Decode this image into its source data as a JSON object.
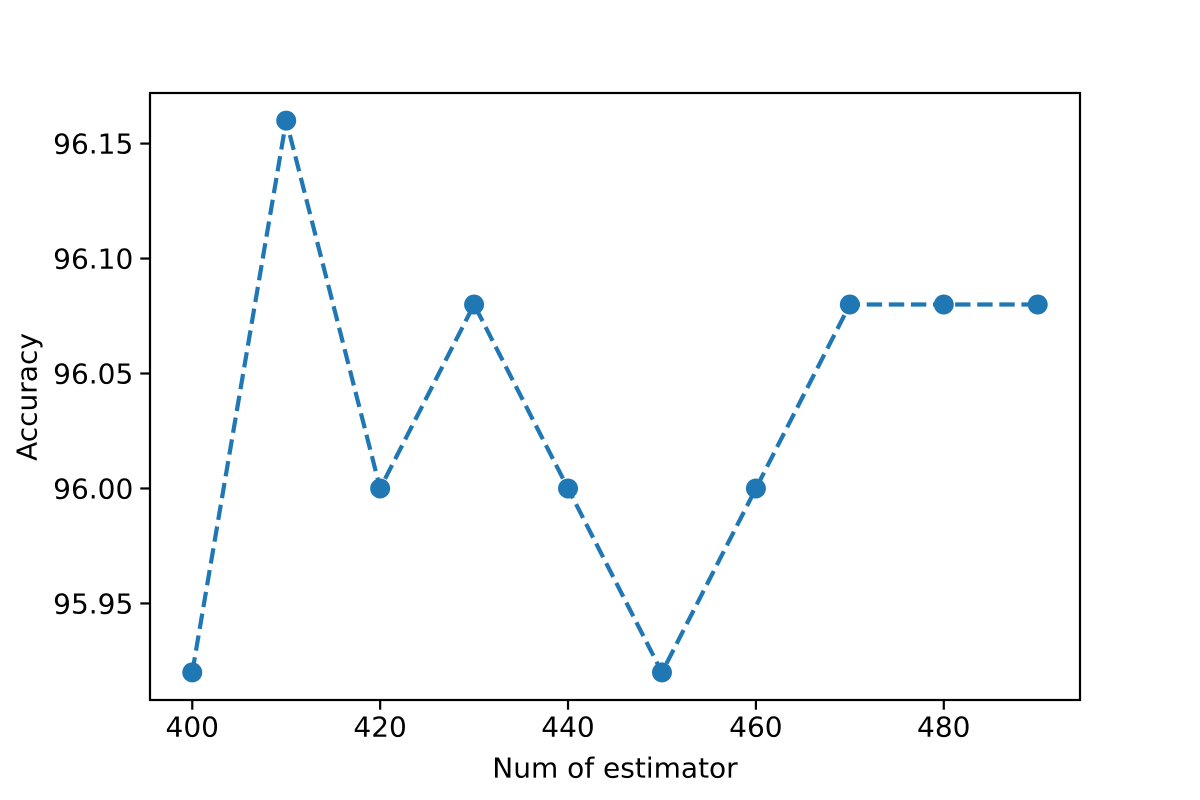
{
  "figure": {
    "background": "#ffffff",
    "spine_color": "#000000",
    "tick_color": "#000000",
    "text_color": "#000000"
  },
  "chart_data": {
    "type": "line",
    "x": [
      400,
      410,
      420,
      430,
      440,
      450,
      460,
      470,
      480,
      490
    ],
    "y": [
      95.92,
      96.16,
      96.0,
      96.08,
      96.0,
      95.92,
      96.0,
      96.08,
      96.08,
      96.08
    ],
    "title": "",
    "xlabel": "Num of estimator",
    "ylabel": "Accuracy",
    "xlim": [
      395.5,
      494.5
    ],
    "ylim": [
      95.908,
      96.172
    ],
    "xticks": [
      400,
      420,
      440,
      460,
      480
    ],
    "xtick_labels": [
      "400",
      "420",
      "440",
      "460",
      "480"
    ],
    "yticks": [
      95.95,
      96.0,
      96.05,
      96.1,
      96.15
    ],
    "ytick_labels": [
      "95.95",
      "96.00",
      "96.05",
      "96.10",
      "96.15"
    ],
    "line_style": "dashed",
    "marker": "circle",
    "line_color": "#1f77b4",
    "marker_color": "#1f77b4",
    "grid": false,
    "legend_position": "none"
  }
}
